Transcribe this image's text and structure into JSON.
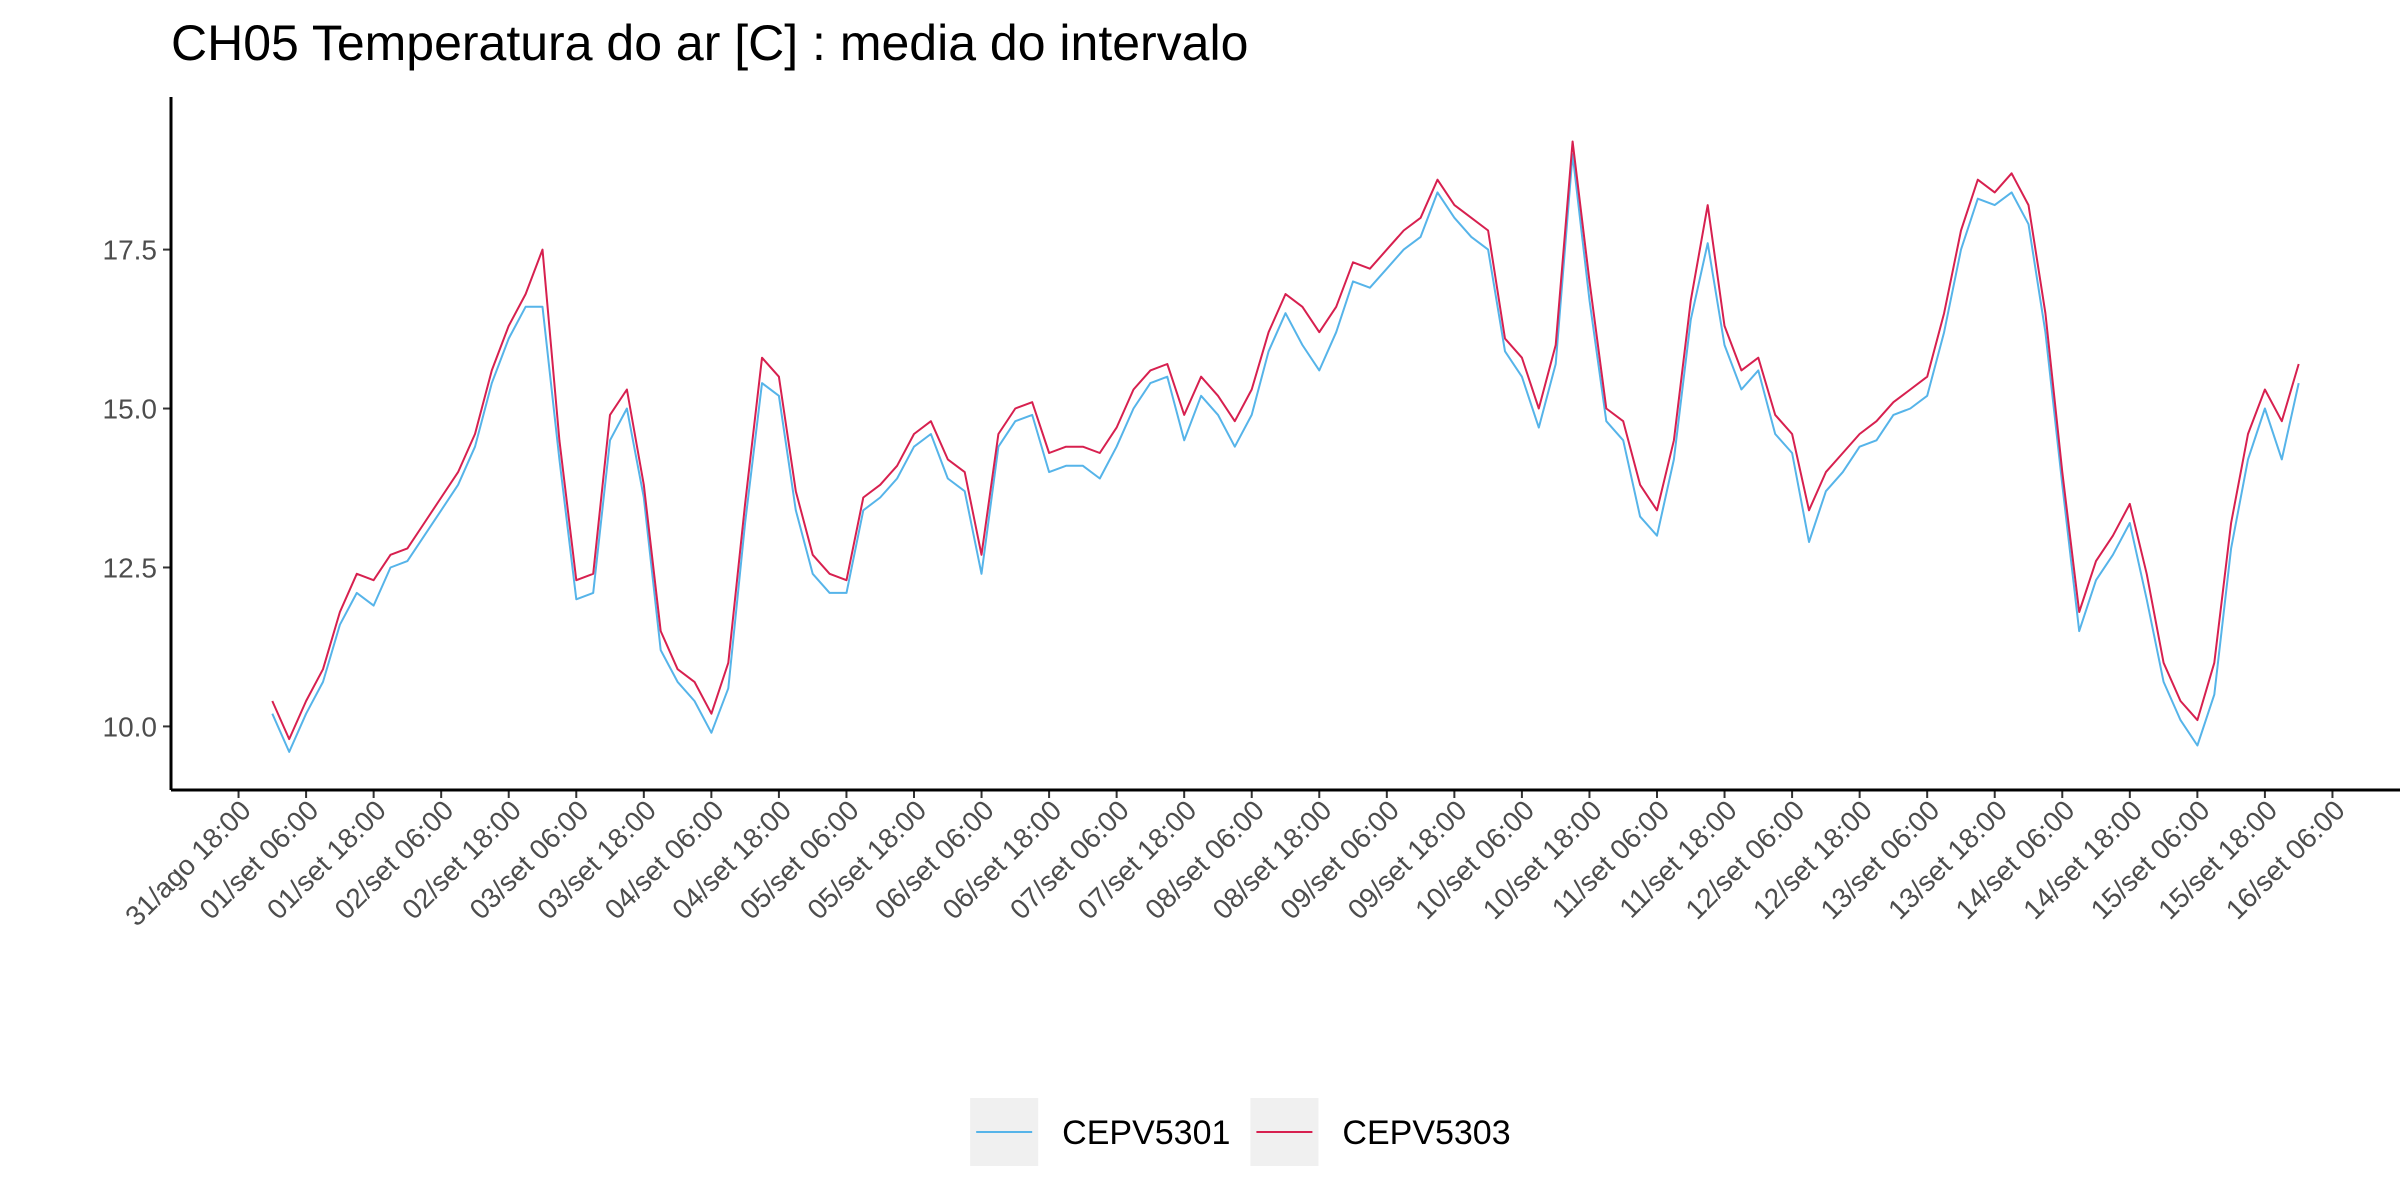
{
  "chart_data": {
    "type": "line",
    "title": "CH05 Temperatura do ar [C] : media do intervalo",
    "x": [
      "09-01 00:00",
      "09-01 03:00",
      "09-01 06:00",
      "09-01 09:00",
      "09-01 12:00",
      "09-01 15:00",
      "09-01 18:00",
      "09-01 21:00",
      "09-02 00:00",
      "09-02 03:00",
      "09-02 06:00",
      "09-02 09:00",
      "09-02 12:00",
      "09-02 15:00",
      "09-02 18:00",
      "09-02 21:00",
      "09-03 00:00",
      "09-03 03:00",
      "09-03 06:00",
      "09-03 09:00",
      "09-03 12:00",
      "09-03 15:00",
      "09-03 18:00",
      "09-03 21:00",
      "09-04 00:00",
      "09-04 03:00",
      "09-04 06:00",
      "09-04 09:00",
      "09-04 12:00",
      "09-04 15:00",
      "09-04 18:00",
      "09-04 21:00",
      "09-05 00:00",
      "09-05 03:00",
      "09-05 06:00",
      "09-05 09:00",
      "09-05 12:00",
      "09-05 15:00",
      "09-05 18:00",
      "09-05 21:00",
      "09-06 00:00",
      "09-06 03:00",
      "09-06 06:00",
      "09-06 09:00",
      "09-06 12:00",
      "09-06 15:00",
      "09-06 18:00",
      "09-06 21:00",
      "09-07 00:00",
      "09-07 03:00",
      "09-07 06:00",
      "09-07 09:00",
      "09-07 12:00",
      "09-07 15:00",
      "09-07 18:00",
      "09-07 21:00",
      "09-08 00:00",
      "09-08 03:00",
      "09-08 06:00",
      "09-08 09:00",
      "09-08 12:00",
      "09-08 15:00",
      "09-08 18:00",
      "09-08 21:00",
      "09-09 00:00",
      "09-09 03:00",
      "09-09 06:00",
      "09-09 09:00",
      "09-09 12:00",
      "09-09 15:00",
      "09-09 18:00",
      "09-09 21:00",
      "09-10 00:00",
      "09-10 03:00",
      "09-10 06:00",
      "09-10 09:00",
      "09-10 12:00",
      "09-10 15:00",
      "09-10 18:00",
      "09-10 21:00",
      "09-11 00:00",
      "09-11 03:00",
      "09-11 06:00",
      "09-11 09:00",
      "09-11 12:00",
      "09-11 15:00",
      "09-11 18:00",
      "09-11 21:00",
      "09-12 00:00",
      "09-12 03:00",
      "09-12 06:00",
      "09-12 09:00",
      "09-12 12:00",
      "09-12 15:00",
      "09-12 18:00",
      "09-12 21:00",
      "09-13 00:00",
      "09-13 03:00",
      "09-13 06:00",
      "09-13 09:00",
      "09-13 12:00",
      "09-13 15:00",
      "09-13 18:00",
      "09-13 21:00",
      "09-14 00:00",
      "09-14 03:00",
      "09-14 06:00",
      "09-14 09:00",
      "09-14 12:00",
      "09-14 15:00",
      "09-14 18:00",
      "09-14 21:00",
      "09-15 00:00",
      "09-15 03:00",
      "09-15 06:00",
      "09-15 09:00",
      "09-15 12:00",
      "09-15 15:00",
      "09-15 18:00",
      "09-15 21:00",
      "09-16 00:00"
    ],
    "series": [
      {
        "name": "CEPV5301",
        "color": "#56b4e9",
        "values": [
          10.2,
          9.6,
          10.2,
          10.7,
          11.6,
          12.1,
          11.9,
          12.5,
          12.6,
          13.0,
          13.4,
          13.8,
          14.4,
          15.4,
          16.1,
          16.6,
          16.6,
          14.2,
          12.0,
          12.1,
          14.5,
          15.0,
          13.6,
          11.2,
          10.7,
          10.4,
          9.9,
          10.6,
          13.2,
          15.4,
          15.2,
          13.4,
          12.4,
          12.1,
          12.1,
          13.4,
          13.6,
          13.9,
          14.4,
          14.6,
          13.9,
          13.7,
          12.4,
          14.4,
          14.8,
          14.9,
          14.0,
          14.1,
          14.1,
          13.9,
          14.4,
          15.0,
          15.4,
          15.5,
          14.5,
          15.2,
          14.9,
          14.4,
          14.9,
          15.9,
          16.5,
          16.0,
          15.6,
          16.2,
          17.0,
          16.9,
          17.2,
          17.5,
          17.7,
          18.4,
          18.0,
          17.7,
          17.5,
          15.9,
          15.5,
          14.7,
          15.7,
          19.0,
          16.7,
          14.8,
          14.5,
          13.3,
          13.0,
          14.2,
          16.4,
          17.6,
          16.0,
          15.3,
          15.6,
          14.6,
          14.3,
          12.9,
          13.7,
          14.0,
          14.4,
          14.5,
          14.9,
          15.0,
          15.2,
          16.2,
          17.5,
          18.3,
          18.2,
          18.4,
          17.9,
          16.2,
          13.8,
          11.5,
          12.3,
          12.7,
          13.2,
          12.0,
          10.7,
          10.1,
          9.7,
          10.5,
          12.8,
          14.2,
          15.0,
          14.2,
          15.4
        ]
      },
      {
        "name": "CEPV5303",
        "color": "#d7204f",
        "values": [
          10.4,
          9.8,
          10.4,
          10.9,
          11.8,
          12.4,
          12.3,
          12.7,
          12.8,
          13.2,
          13.6,
          14.0,
          14.6,
          15.6,
          16.3,
          16.8,
          17.5,
          14.5,
          12.3,
          12.4,
          14.9,
          15.3,
          13.8,
          11.5,
          10.9,
          10.7,
          10.2,
          11.0,
          13.5,
          15.8,
          15.5,
          13.7,
          12.7,
          12.4,
          12.3,
          13.6,
          13.8,
          14.1,
          14.6,
          14.8,
          14.2,
          14.0,
          12.7,
          14.6,
          15.0,
          15.1,
          14.3,
          14.4,
          14.4,
          14.3,
          14.7,
          15.3,
          15.6,
          15.7,
          14.9,
          15.5,
          15.2,
          14.8,
          15.3,
          16.2,
          16.8,
          16.6,
          16.2,
          16.6,
          17.3,
          17.2,
          17.5,
          17.8,
          18.0,
          18.6,
          18.2,
          18.0,
          17.8,
          16.1,
          15.8,
          15.0,
          16.0,
          19.2,
          17.0,
          15.0,
          14.8,
          13.8,
          13.4,
          14.5,
          16.7,
          18.2,
          16.3,
          15.6,
          15.8,
          14.9,
          14.6,
          13.4,
          14.0,
          14.3,
          14.6,
          14.8,
          15.1,
          15.3,
          15.5,
          16.5,
          17.8,
          18.6,
          18.4,
          18.7,
          18.2,
          16.5,
          14.0,
          11.8,
          12.6,
          13.0,
          13.5,
          12.4,
          11.0,
          10.4,
          10.1,
          11.0,
          13.2,
          14.6,
          15.3,
          14.8,
          15.7
        ]
      }
    ],
    "xlim": [
      "08-31 06:00",
      "09-16 18:00"
    ],
    "xticks": [
      {
        "value": "08-31 18:00",
        "label": "31/ago 18:00"
      },
      {
        "value": "09-01 06:00",
        "label": "01/set 06:00"
      },
      {
        "value": "09-01 18:00",
        "label": "01/set 18:00"
      },
      {
        "value": "09-02 06:00",
        "label": "02/set 06:00"
      },
      {
        "value": "09-02 18:00",
        "label": "02/set 18:00"
      },
      {
        "value": "09-03 06:00",
        "label": "03/set 06:00"
      },
      {
        "value": "09-03 18:00",
        "label": "03/set 18:00"
      },
      {
        "value": "09-04 06:00",
        "label": "04/set 06:00"
      },
      {
        "value": "09-04 18:00",
        "label": "04/set 18:00"
      },
      {
        "value": "09-05 06:00",
        "label": "05/set 06:00"
      },
      {
        "value": "09-05 18:00",
        "label": "05/set 18:00"
      },
      {
        "value": "09-06 06:00",
        "label": "06/set 06:00"
      },
      {
        "value": "09-06 18:00",
        "label": "06/set 18:00"
      },
      {
        "value": "09-07 06:00",
        "label": "07/set 06:00"
      },
      {
        "value": "09-07 18:00",
        "label": "07/set 18:00"
      },
      {
        "value": "09-08 06:00",
        "label": "08/set 06:00"
      },
      {
        "value": "09-08 18:00",
        "label": "08/set 18:00"
      },
      {
        "value": "09-09 06:00",
        "label": "09/set 06:00"
      },
      {
        "value": "09-09 18:00",
        "label": "09/set 18:00"
      },
      {
        "value": "09-10 06:00",
        "label": "10/set 06:00"
      },
      {
        "value": "09-10 18:00",
        "label": "10/set 18:00"
      },
      {
        "value": "09-11 06:00",
        "label": "11/set 06:00"
      },
      {
        "value": "09-11 18:00",
        "label": "11/set 18:00"
      },
      {
        "value": "09-12 06:00",
        "label": "12/set 06:00"
      },
      {
        "value": "09-12 18:00",
        "label": "12/set 18:00"
      },
      {
        "value": "09-13 06:00",
        "label": "13/set 06:00"
      },
      {
        "value": "09-13 18:00",
        "label": "13/set 18:00"
      },
      {
        "value": "09-14 06:00",
        "label": "14/set 06:00"
      },
      {
        "value": "09-14 18:00",
        "label": "14/set 18:00"
      },
      {
        "value": "09-15 06:00",
        "label": "15/set 06:00"
      },
      {
        "value": "09-15 18:00",
        "label": "15/set 18:00"
      },
      {
        "value": "09-16 06:00",
        "label": "16/set 06:00"
      }
    ],
    "ylim": [
      9.0,
      19.9
    ],
    "yticks": [
      {
        "value": 10,
        "label": "10.0"
      },
      {
        "value": 12.5,
        "label": "12.5"
      },
      {
        "value": 15,
        "label": "15.0"
      },
      {
        "value": 17.5,
        "label": "17.5"
      }
    ],
    "grid": false,
    "legend": "bottom"
  }
}
